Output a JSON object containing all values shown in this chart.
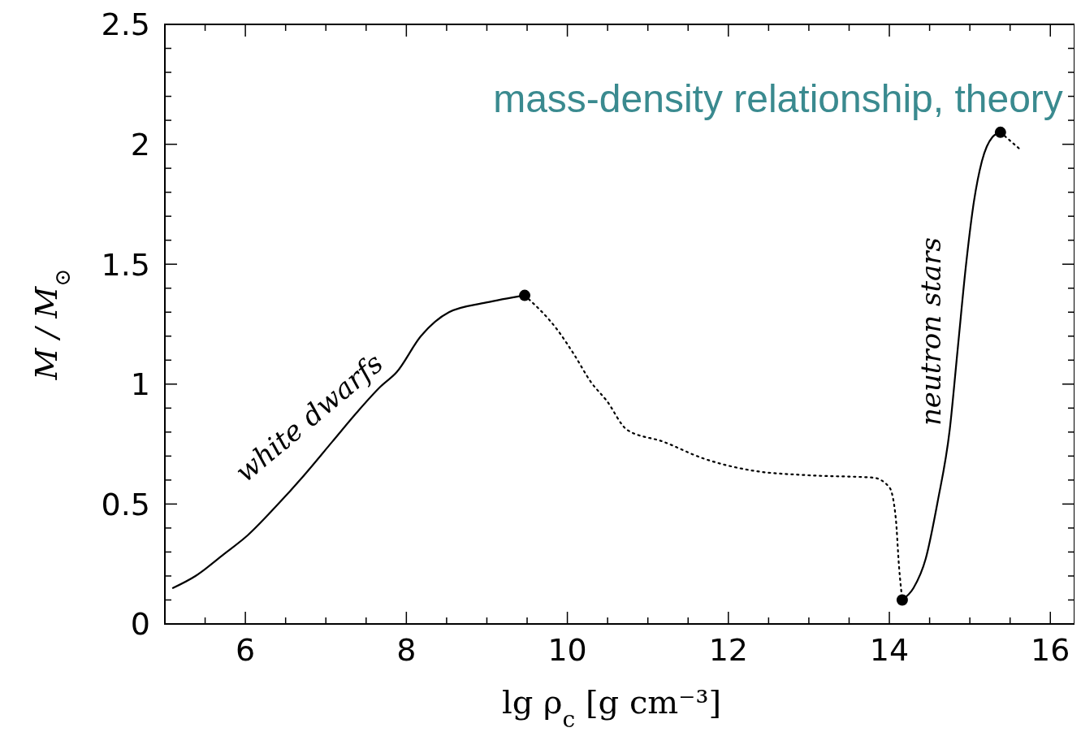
{
  "chart_data": {
    "type": "line",
    "title": "mass-density relationship, theory",
    "xlabel": "lg  ρ$_{c}$  [g  cm⁻³]",
    "ylabel": "M / M$_{⊙}$",
    "xlim": [
      5,
      16.3
    ],
    "ylim": [
      0,
      2.5
    ],
    "xticks": [
      {
        "value": 5.5,
        "label": null
      },
      6,
      {
        "value": 6.5,
        "label": null
      },
      {
        "value": 7,
        "label": null
      },
      {
        "value": 7.5,
        "label": null
      },
      8,
      {
        "value": 8.5,
        "label": null
      },
      {
        "value": 9,
        "label": null
      },
      {
        "value": 9.5,
        "label": null
      },
      10,
      {
        "value": 10.5,
        "label": null
      },
      {
        "value": 11,
        "label": null
      },
      {
        "value": 11.5,
        "label": null
      },
      12,
      {
        "value": 12.5,
        "label": null
      },
      {
        "value": 13,
        "label": null
      },
      {
        "value": 13.5,
        "label": null
      },
      14,
      {
        "value": 14.5,
        "label": null
      },
      {
        "value": 15,
        "label": null
      },
      {
        "value": 15.5,
        "label": null
      },
      16
    ],
    "yticks": [
      0,
      {
        "value": 0.1,
        "label": null
      },
      {
        "value": 0.2,
        "label": null
      },
      {
        "value": 0.3,
        "label": null
      },
      {
        "value": 0.4,
        "label": null
      },
      0.5,
      {
        "value": 0.6,
        "label": null
      },
      {
        "value": 0.7,
        "label": null
      },
      {
        "value": 0.8,
        "label": null
      },
      {
        "value": 0.9,
        "label": null
      },
      1,
      {
        "value": 1.1,
        "label": null
      },
      {
        "value": 1.2,
        "label": null
      },
      {
        "value": 1.3,
        "label": null
      },
      {
        "value": 1.4,
        "label": null
      },
      1.5,
      {
        "value": 1.6,
        "label": null
      },
      {
        "value": 1.7,
        "label": null
      },
      {
        "value": 1.8,
        "label": null
      },
      {
        "value": 1.9,
        "label": null
      },
      2,
      {
        "value": 2.1,
        "label": null
      },
      {
        "value": 2.2,
        "label": null
      },
      {
        "value": 2.3,
        "label": null
      },
      {
        "value": 2.4,
        "label": null
      },
      2.5
    ],
    "grid": false,
    "series": [
      {
        "color": "#000000",
        "line_style": "solid",
        "x": [
          5.1,
          5.38,
          5.73,
          6.03,
          6.38,
          6.73,
          7.08,
          7.38,
          7.68,
          7.88,
          8.18,
          8.53,
          8.99,
          9.47
        ],
        "values": [
          0.15,
          0.2,
          0.29,
          0.37,
          0.49,
          0.62,
          0.76,
          0.88,
          0.99,
          1.05,
          1.2,
          1.3,
          1.34,
          1.37
        ]
      },
      {
        "color": "#000000",
        "line_style": "dotted",
        "x": [
          9.47,
          9.89,
          10.09,
          10.29,
          10.49,
          10.74,
          11.19,
          11.69,
          12.29,
          12.99,
          13.8,
          14.0,
          14.08,
          14.12,
          14.16
        ],
        "values": [
          1.37,
          1.22,
          1.12,
          1.01,
          0.93,
          0.81,
          0.76,
          0.69,
          0.64,
          0.62,
          0.61,
          0.57,
          0.44,
          0.24,
          0.1
        ]
      },
      {
        "color": "#000000",
        "line_style": "solid",
        "x": [
          14.16,
          14.3,
          14.45,
          14.6,
          14.75,
          14.85,
          14.95,
          15.05,
          15.15,
          15.28,
          15.38
        ],
        "values": [
          0.1,
          0.15,
          0.27,
          0.51,
          0.81,
          1.15,
          1.49,
          1.76,
          1.93,
          2.03,
          2.05
        ]
      },
      {
        "color": "#000000",
        "line_style": "dotted",
        "x": [
          15.38,
          15.62
        ],
        "values": [
          2.05,
          1.98
        ]
      },
      {
        "type": "scatter",
        "marker": "circle",
        "color": "#000000",
        "x": [
          9.47,
          14.16,
          15.38
        ],
        "values": [
          1.37,
          0.1,
          2.05
        ]
      }
    ],
    "annotations": [
      "white dwarfs",
      "neutron stars"
    ]
  }
}
